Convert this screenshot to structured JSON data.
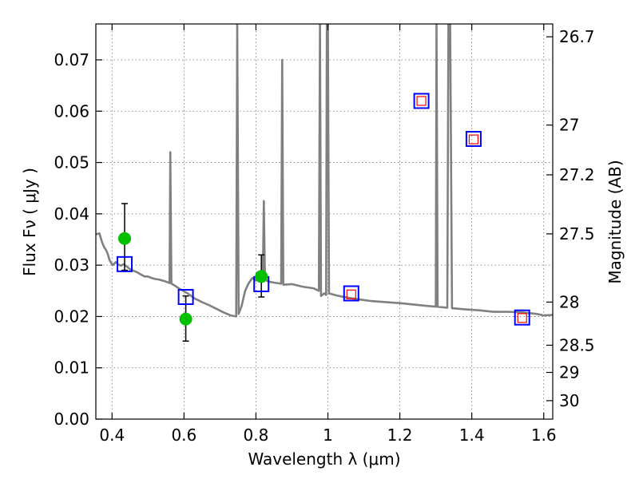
{
  "chart_data": {
    "type": "scatter",
    "title": "",
    "xlabel": "Wavelength  λ (μm)",
    "ylabel": "Flux  Fν  ( μJy )",
    "y2label": "Magnitude (AB)",
    "xlim": [
      0.355,
      1.625
    ],
    "ylim": [
      0.0,
      0.077
    ],
    "grid": true,
    "x_ticks": [
      0.4,
      0.6,
      0.8,
      1.0,
      1.2,
      1.4,
      1.6
    ],
    "x_tick_labels": [
      "0.4",
      "0.6",
      "0.8",
      "1",
      "1.2",
      "1.4",
      "1.6"
    ],
    "y_ticks": [
      0.0,
      0.01,
      0.02,
      0.03,
      0.04,
      0.05,
      0.06,
      0.07
    ],
    "y_tick_labels": [
      "0.00",
      "0.01",
      "0.02",
      "0.03",
      "0.04",
      "0.05",
      "0.06",
      "0.07"
    ],
    "y2_ticks": [
      {
        "flux": 0.0745,
        "label": "26.7"
      },
      {
        "flux": 0.0573,
        "label": "27"
      },
      {
        "flux": 0.0476,
        "label": "27.2"
      },
      {
        "flux": 0.0361,
        "label": "27.5"
      },
      {
        "flux": 0.0228,
        "label": "28"
      },
      {
        "flux": 0.0144,
        "label": "28.5"
      },
      {
        "flux": 0.0091,
        "label": "29"
      },
      {
        "flux": 0.0036,
        "label": "30"
      }
    ],
    "series": [
      {
        "kind": "model-spectrum",
        "color": "#808080",
        "points": [
          [
            0.355,
            0.036
          ],
          [
            0.365,
            0.0362
          ],
          [
            0.372,
            0.0345
          ],
          [
            0.378,
            0.0335
          ],
          [
            0.383,
            0.033
          ],
          [
            0.388,
            0.0322
          ],
          [
            0.393,
            0.031
          ],
          [
            0.397,
            0.0305
          ],
          [
            0.402,
            0.03
          ],
          [
            0.41,
            0.0306
          ],
          [
            0.418,
            0.0301
          ],
          [
            0.425,
            0.0299
          ],
          [
            0.432,
            0.0302
          ],
          [
            0.44,
            0.0298
          ],
          [
            0.45,
            0.0292
          ],
          [
            0.46,
            0.0289
          ],
          [
            0.47,
            0.0286
          ],
          [
            0.48,
            0.0282
          ],
          [
            0.49,
            0.0278
          ],
          [
            0.5,
            0.0278
          ],
          [
            0.51,
            0.0275
          ],
          [
            0.52,
            0.0273
          ],
          [
            0.53,
            0.0272
          ],
          [
            0.54,
            0.027
          ],
          [
            0.55,
            0.0268
          ],
          [
            0.56,
            0.0265
          ],
          [
            0.562,
            0.052
          ],
          [
            0.565,
            0.0264
          ],
          [
            0.575,
            0.026
          ],
          [
            0.59,
            0.0253
          ],
          [
            0.61,
            0.0245
          ],
          [
            0.63,
            0.0235
          ],
          [
            0.65,
            0.0228
          ],
          [
            0.67,
            0.0222
          ],
          [
            0.69,
            0.0215
          ],
          [
            0.71,
            0.0208
          ],
          [
            0.73,
            0.0202
          ],
          [
            0.745,
            0.02
          ],
          [
            0.748,
            0.077
          ],
          [
            0.752,
            0.0205
          ],
          [
            0.76,
            0.022
          ],
          [
            0.77,
            0.025
          ],
          [
            0.78,
            0.0265
          ],
          [
            0.79,
            0.0275
          ],
          [
            0.8,
            0.027
          ],
          [
            0.805,
            0.0283
          ],
          [
            0.812,
            0.0275
          ],
          [
            0.819,
            0.0268
          ],
          [
            0.822,
            0.0425
          ],
          [
            0.825,
            0.0272
          ],
          [
            0.835,
            0.0268
          ],
          [
            0.85,
            0.0266
          ],
          [
            0.87,
            0.0264
          ],
          [
            0.873,
            0.07
          ],
          [
            0.876,
            0.0262
          ],
          [
            0.9,
            0.0263
          ],
          [
            0.93,
            0.0258
          ],
          [
            0.96,
            0.0255
          ],
          [
            0.975,
            0.025
          ],
          [
            0.978,
            0.077
          ],
          [
            0.981,
            0.024
          ],
          [
            0.99,
            0.0245
          ],
          [
            0.995,
            0.0242
          ],
          [
            0.997,
            0.077
          ],
          [
            1.0,
            0.077
          ],
          [
            1.003,
            0.0245
          ],
          [
            1.03,
            0.024
          ],
          [
            1.06,
            0.0236
          ],
          [
            1.09,
            0.0233
          ],
          [
            1.12,
            0.023
          ],
          [
            1.16,
            0.0228
          ],
          [
            1.2,
            0.0226
          ],
          [
            1.24,
            0.0223
          ],
          [
            1.27,
            0.0221
          ],
          [
            1.3,
            0.0219
          ],
          [
            1.302,
            0.077
          ],
          [
            1.305,
            0.0219
          ],
          [
            1.32,
            0.0218
          ],
          [
            1.332,
            0.0217
          ],
          [
            1.335,
            0.077
          ],
          [
            1.34,
            0.077
          ],
          [
            1.345,
            0.0216
          ],
          [
            1.38,
            0.0214
          ],
          [
            1.42,
            0.0212
          ],
          [
            1.46,
            0.0209
          ],
          [
            1.5,
            0.0209
          ],
          [
            1.54,
            0.0208
          ],
          [
            1.58,
            0.0205
          ],
          [
            1.6,
            0.0202
          ],
          [
            1.625,
            0.0203
          ]
        ]
      },
      {
        "kind": "observed",
        "marker": "circle",
        "color": "#00c000",
        "points": [
          {
            "x": 0.435,
            "y": 0.0352,
            "yerr_low": 0.0062,
            "yerr_high": 0.0068
          },
          {
            "x": 0.605,
            "y": 0.0195,
            "yerr_low": 0.0043,
            "yerr_high": 0.0045
          },
          {
            "x": 0.815,
            "y": 0.0278,
            "yerr_low": 0.004,
            "yerr_high": 0.0042
          }
        ]
      },
      {
        "kind": "model-photometry",
        "marker": "square",
        "color": "#0000ff",
        "points": [
          {
            "x": 0.435,
            "y": 0.0302
          },
          {
            "x": 0.605,
            "y": 0.0238
          },
          {
            "x": 0.815,
            "y": 0.0263
          },
          {
            "x": 1.065,
            "y": 0.0245
          },
          {
            "x": 1.26,
            "y": 0.062
          },
          {
            "x": 1.405,
            "y": 0.0546
          },
          {
            "x": 1.54,
            "y": 0.0198
          }
        ]
      },
      {
        "kind": "upper-limits",
        "marker": "small-square",
        "color": "#ff0000",
        "points": [
          {
            "x": 1.065,
            "y": 0.0243
          },
          {
            "x": 1.26,
            "y": 0.062
          },
          {
            "x": 1.405,
            "y": 0.0545
          },
          {
            "x": 1.54,
            "y": 0.0197
          }
        ]
      }
    ]
  }
}
